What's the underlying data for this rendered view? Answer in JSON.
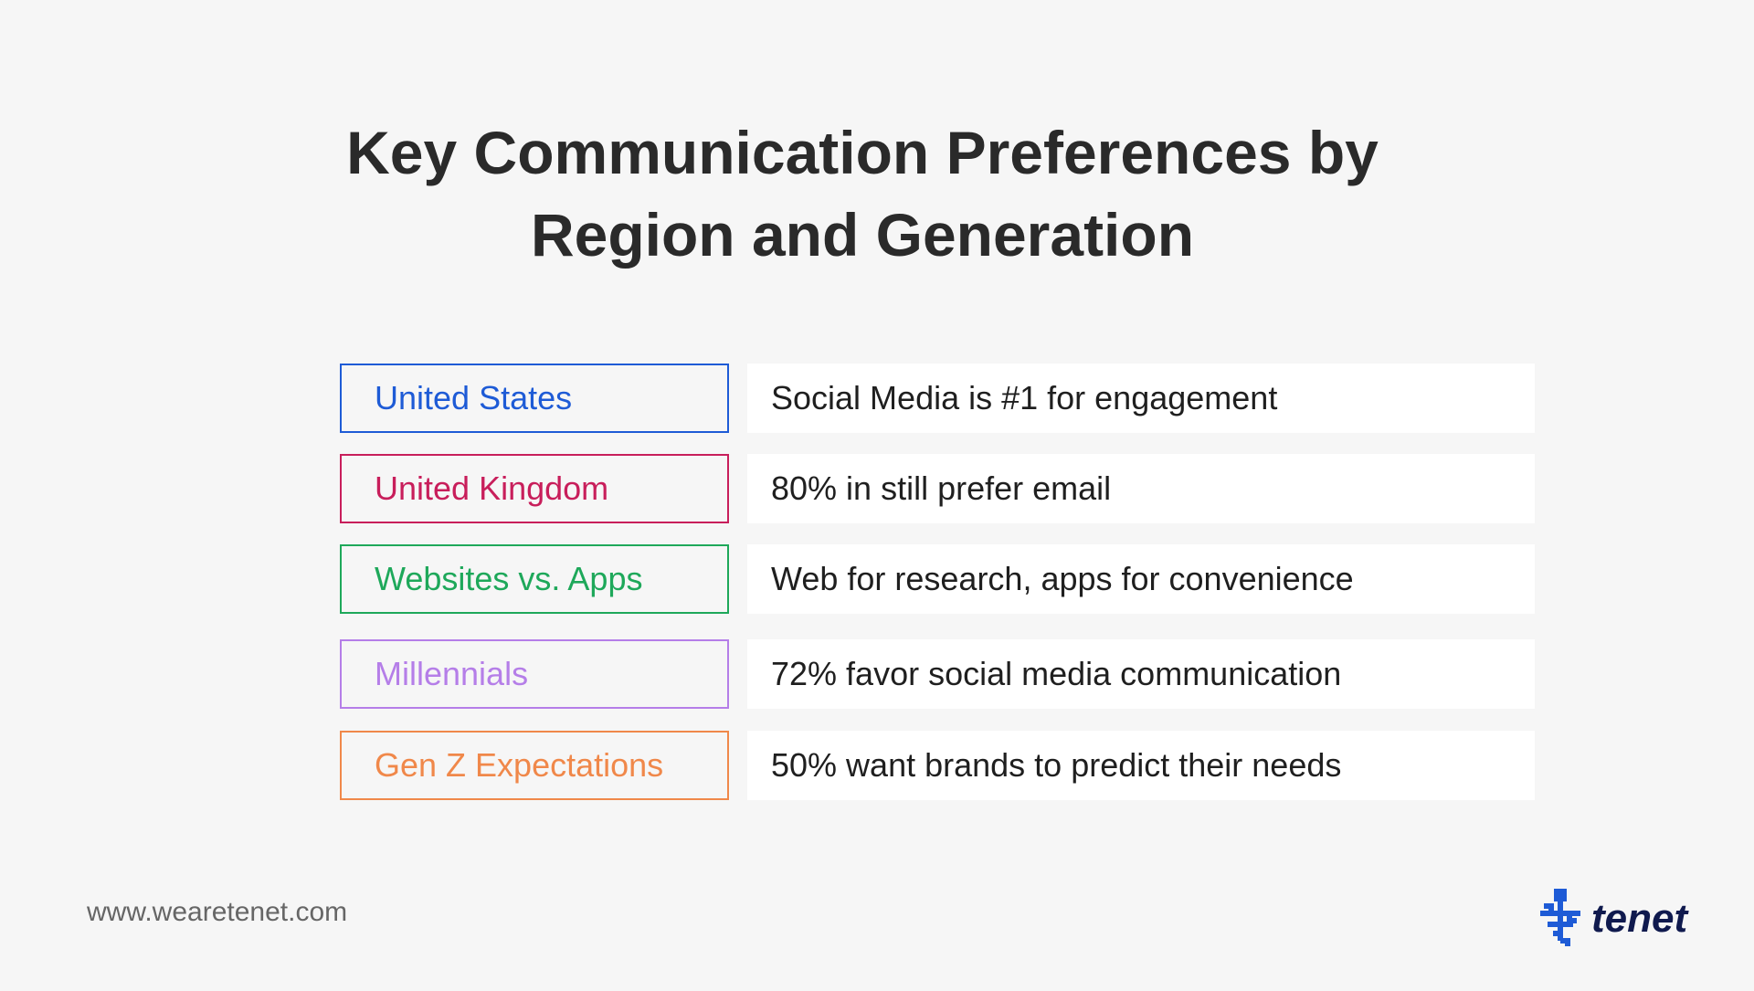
{
  "title": {
    "line1": "Key Communication Preferences by",
    "line2": "Region and Generation"
  },
  "rows": [
    {
      "label": "United States",
      "description": "Social Media is #1 for engagement",
      "color": "#1e5bd6"
    },
    {
      "label": "United Kingdom",
      "description": "80% in still prefer email",
      "color": "#c81e5b"
    },
    {
      "label": "Websites vs. Apps",
      "description": "Web for research, apps for convenience",
      "color": "#1ea85a"
    },
    {
      "label": "Millennials",
      "description": "72% favor social media communication",
      "color": "#b57ee8"
    },
    {
      "label": "Gen Z Expectations",
      "description": "50% want brands to predict their needs",
      "color": "#f0884a"
    }
  ],
  "footer": {
    "url": "www.wearetenet.com"
  },
  "logo": {
    "text": "tenet",
    "icon": "tenet-logo-icon",
    "mark_color": "#1e5bd6",
    "text_color": "#101a4e"
  }
}
